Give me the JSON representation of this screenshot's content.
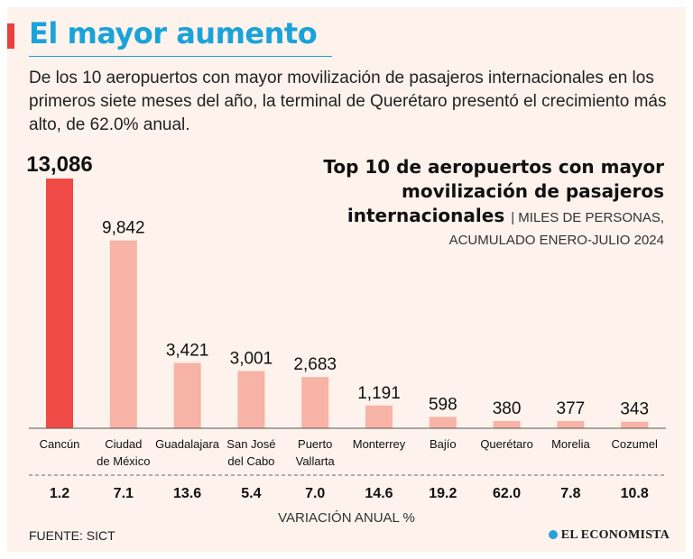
{
  "header": {
    "title": "El mayor aumento",
    "subtitle": "De los 10 aeropuertos con mayor movilización de pasajeros internacionales en los primeros siete meses del año, la terminal de Querétaro presentó el crecimiento más alto, de 62.0% anual."
  },
  "colors": {
    "accent": "#e8403e",
    "title": "#1aa3d9",
    "highlight_bar": "#ef4a45",
    "bar": "#f6b3a6",
    "background": "#fdf2ec"
  },
  "chart_data": {
    "type": "bar",
    "title": "Top 10 de aeropuertos con mayor movilización de pasajeros internacionales",
    "unit": "MILES DE PERSONAS,",
    "period": "ACUMULADO ENERO-JULIO 2024",
    "categories": [
      [
        "Cancún"
      ],
      [
        "Ciudad",
        "de México"
      ],
      [
        "Guadalajara"
      ],
      [
        "San José",
        "del Cabo"
      ],
      [
        "Puerto",
        "Vallarta"
      ],
      [
        "Monterrey"
      ],
      [
        "Bajío"
      ],
      [
        "Querétaro"
      ],
      [
        "Morelia"
      ],
      [
        "Cozumel"
      ]
    ],
    "values": [
      13086,
      9842,
      3421,
      3001,
      2683,
      1191,
      598,
      380,
      377,
      343
    ],
    "value_labels": [
      "13,086",
      "9,842",
      "3,421",
      "3,001",
      "2,683",
      "1,191",
      "598",
      "380",
      "377",
      "343"
    ],
    "highlight_index": 0,
    "annual_variation": [
      "1.2",
      "7.1",
      "13.6",
      "5.4",
      "7.0",
      "14.6",
      "19.2",
      "62.0",
      "7.8",
      "10.8"
    ],
    "variation_label": "VARIACIÓN ANUAL %",
    "ylim": [
      0,
      13086
    ]
  },
  "footer": {
    "source": "FUENTE: SICT",
    "brand": "EL ECONOMISTA"
  }
}
